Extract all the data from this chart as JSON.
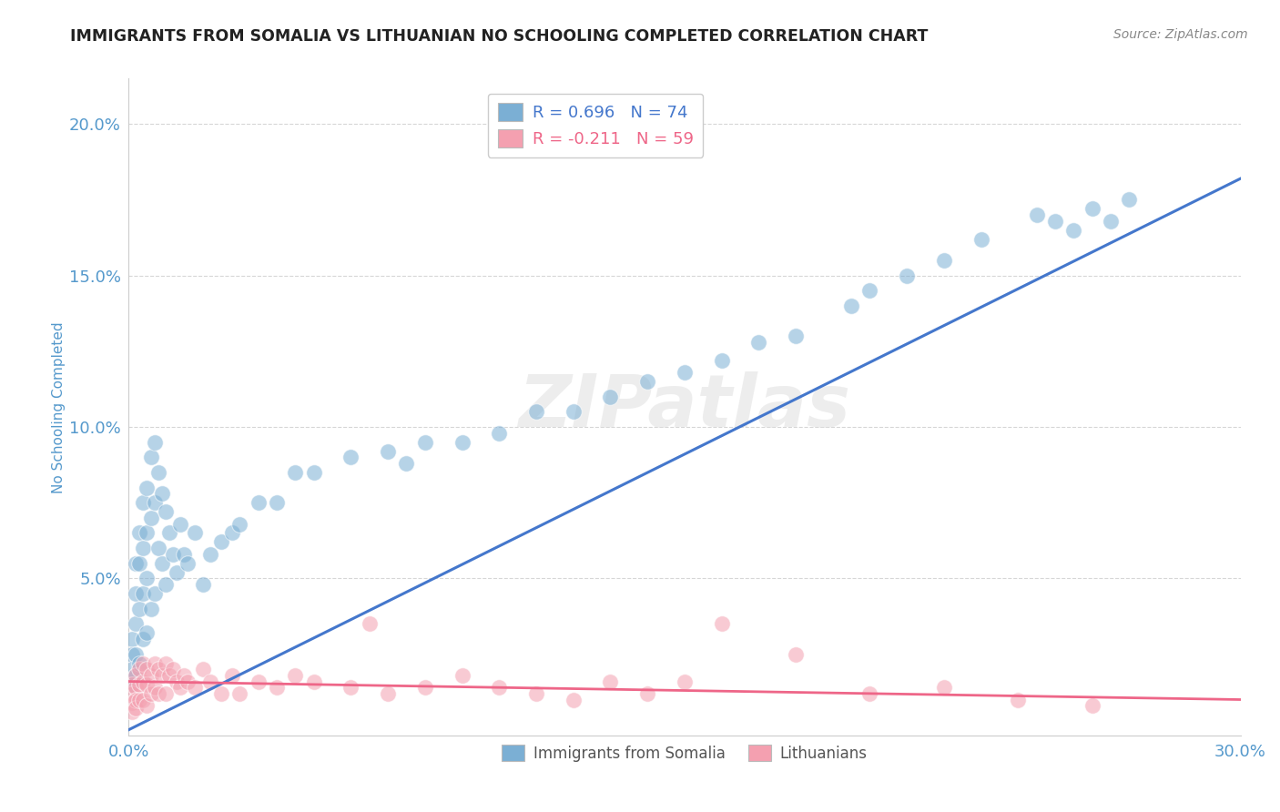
{
  "title": "IMMIGRANTS FROM SOMALIA VS LITHUANIAN NO SCHOOLING COMPLETED CORRELATION CHART",
  "source": "Source: ZipAtlas.com",
  "ylabel": "No Schooling Completed",
  "xlim": [
    0.0,
    0.3
  ],
  "ylim": [
    -0.002,
    0.215
  ],
  "blue_R": 0.696,
  "pink_R": -0.211,
  "blue_N": 74,
  "pink_N": 59,
  "blue_color": "#7BAFD4",
  "pink_color": "#F4A0B0",
  "blue_line_color": "#4477CC",
  "pink_line_color": "#EE6688",
  "background_color": "#FFFFFF",
  "grid_color": "#CCCCCC",
  "title_color": "#222222",
  "axis_label_color": "#5599CC",
  "watermark_color": "#DDDDDD",
  "legend1_label": "Immigrants from Somalia",
  "legend2_label": "Lithuanians",
  "blue_line_x0": 0.0,
  "blue_line_y0": 0.0,
  "blue_line_x1": 0.3,
  "blue_line_y1": 0.182,
  "pink_line_x0": 0.0,
  "pink_line_y0": 0.016,
  "pink_line_x1": 0.3,
  "pink_line_y1": 0.01,
  "blue_x": [
    0.001,
    0.001,
    0.001,
    0.001,
    0.002,
    0.002,
    0.002,
    0.002,
    0.002,
    0.003,
    0.003,
    0.003,
    0.003,
    0.004,
    0.004,
    0.004,
    0.004,
    0.005,
    0.005,
    0.005,
    0.005,
    0.006,
    0.006,
    0.006,
    0.007,
    0.007,
    0.007,
    0.008,
    0.008,
    0.009,
    0.009,
    0.01,
    0.01,
    0.011,
    0.012,
    0.013,
    0.014,
    0.015,
    0.016,
    0.018,
    0.02,
    0.022,
    0.025,
    0.028,
    0.03,
    0.035,
    0.04,
    0.045,
    0.05,
    0.06,
    0.07,
    0.075,
    0.08,
    0.09,
    0.1,
    0.11,
    0.12,
    0.13,
    0.14,
    0.15,
    0.16,
    0.17,
    0.18,
    0.195,
    0.2,
    0.21,
    0.22,
    0.23,
    0.245,
    0.25,
    0.255,
    0.26,
    0.265,
    0.27
  ],
  "blue_y": [
    0.03,
    0.025,
    0.02,
    0.015,
    0.055,
    0.045,
    0.035,
    0.025,
    0.018,
    0.065,
    0.055,
    0.04,
    0.022,
    0.075,
    0.06,
    0.045,
    0.03,
    0.08,
    0.065,
    0.05,
    0.032,
    0.09,
    0.07,
    0.04,
    0.095,
    0.075,
    0.045,
    0.085,
    0.06,
    0.078,
    0.055,
    0.072,
    0.048,
    0.065,
    0.058,
    0.052,
    0.068,
    0.058,
    0.055,
    0.065,
    0.048,
    0.058,
    0.062,
    0.065,
    0.068,
    0.075,
    0.075,
    0.085,
    0.085,
    0.09,
    0.092,
    0.088,
    0.095,
    0.095,
    0.098,
    0.105,
    0.105,
    0.11,
    0.115,
    0.118,
    0.122,
    0.128,
    0.13,
    0.14,
    0.145,
    0.15,
    0.155,
    0.162,
    0.17,
    0.168,
    0.165,
    0.172,
    0.168,
    0.175
  ],
  "pink_x": [
    0.001,
    0.001,
    0.001,
    0.001,
    0.002,
    0.002,
    0.002,
    0.002,
    0.003,
    0.003,
    0.003,
    0.004,
    0.004,
    0.004,
    0.005,
    0.005,
    0.005,
    0.006,
    0.006,
    0.007,
    0.007,
    0.008,
    0.008,
    0.009,
    0.01,
    0.01,
    0.011,
    0.012,
    0.013,
    0.014,
    0.015,
    0.016,
    0.018,
    0.02,
    0.022,
    0.025,
    0.028,
    0.03,
    0.035,
    0.04,
    0.045,
    0.05,
    0.06,
    0.065,
    0.07,
    0.08,
    0.09,
    0.1,
    0.11,
    0.12,
    0.13,
    0.14,
    0.15,
    0.16,
    0.18,
    0.2,
    0.22,
    0.24,
    0.26
  ],
  "pink_y": [
    0.015,
    0.012,
    0.009,
    0.006,
    0.018,
    0.014,
    0.01,
    0.007,
    0.02,
    0.015,
    0.01,
    0.022,
    0.016,
    0.01,
    0.02,
    0.015,
    0.008,
    0.018,
    0.012,
    0.022,
    0.014,
    0.02,
    0.012,
    0.018,
    0.022,
    0.012,
    0.018,
    0.02,
    0.016,
    0.014,
    0.018,
    0.016,
    0.014,
    0.02,
    0.016,
    0.012,
    0.018,
    0.012,
    0.016,
    0.014,
    0.018,
    0.016,
    0.014,
    0.035,
    0.012,
    0.014,
    0.018,
    0.014,
    0.012,
    0.01,
    0.016,
    0.012,
    0.016,
    0.035,
    0.025,
    0.012,
    0.014,
    0.01,
    0.008
  ]
}
